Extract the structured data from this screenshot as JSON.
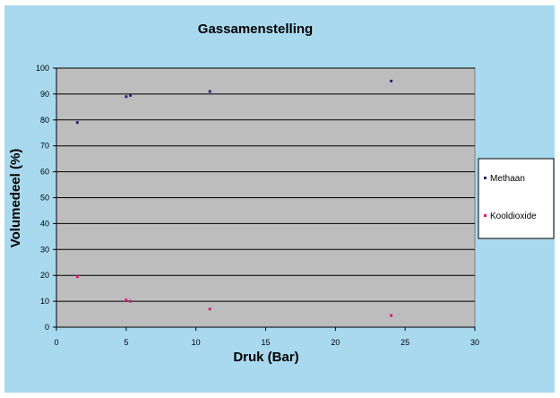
{
  "chart_data": {
    "type": "scatter",
    "title": "Gassamenstelling",
    "xlabel": "Druk (Bar)",
    "ylabel": "Volumedeel (%)",
    "xlim": [
      0,
      30
    ],
    "ylim": [
      0,
      100
    ],
    "xticks": [
      "0",
      "5",
      "10",
      "15",
      "20",
      "25",
      "30"
    ],
    "yticks": [
      "0",
      "10",
      "20",
      "30",
      "40",
      "50",
      "60",
      "70",
      "80",
      "90",
      "100"
    ],
    "grid": true,
    "legend_position": "right",
    "colors": {
      "background": "#a9d9ef",
      "plot_area": "#bdbdbd",
      "gridline": "#000000"
    },
    "series": [
      {
        "name": "Methaan",
        "color": "#1f2a7a",
        "points": [
          {
            "x": 1.5,
            "y": 79
          },
          {
            "x": 5.0,
            "y": 89
          },
          {
            "x": 5.3,
            "y": 89.5
          },
          {
            "x": 11.0,
            "y": 91
          },
          {
            "x": 24.0,
            "y": 95
          }
        ]
      },
      {
        "name": "Kooldioxide",
        "color": "#d81b78",
        "points": [
          {
            "x": 1.5,
            "y": 19.5
          },
          {
            "x": 5.0,
            "y": 10.5
          },
          {
            "x": 5.3,
            "y": 10
          },
          {
            "x": 11.0,
            "y": 7
          },
          {
            "x": 24.0,
            "y": 4.5
          }
        ]
      }
    ]
  }
}
